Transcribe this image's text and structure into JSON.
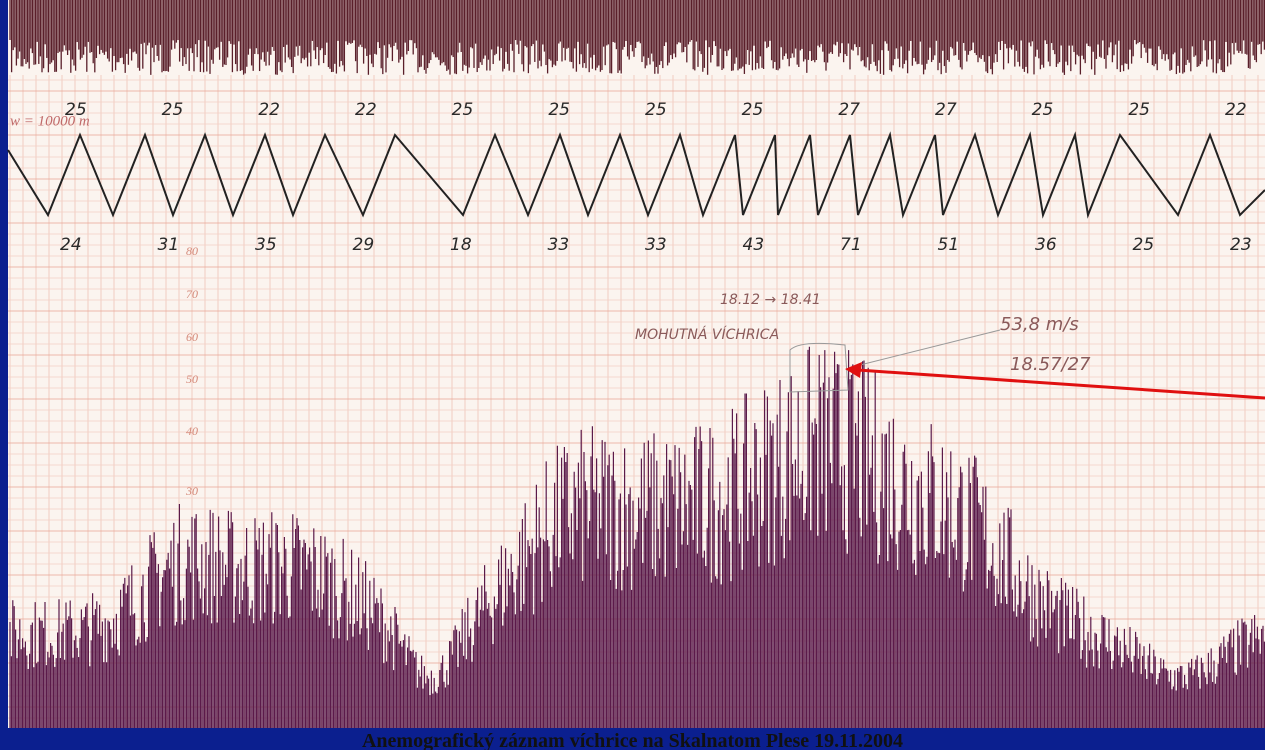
{
  "caption": "Anemografický záznam víchrice na Skalnatom Plese 19.11.2004",
  "record": {
    "scale_note": "w = 10000 m",
    "upper_numbers": [
      "25",
      "25",
      "22",
      "22",
      "25",
      "25",
      "25",
      "25",
      "27",
      "27",
      "25",
      "25",
      "22"
    ],
    "lower_numbers": [
      "24",
      "31",
      "35",
      "29",
      "18",
      "33",
      "33",
      "43",
      "71",
      "51",
      "36",
      "25",
      "23"
    ],
    "speed_scale": [
      "80",
      "70",
      "60",
      "50",
      "40",
      "30"
    ],
    "annotations": {
      "time_span": "18.12 → 18.41",
      "event": "MOHUTNÁ VÍCHRICA",
      "peak_speed": "53,8 m/s",
      "peak_time": "18.57/27"
    }
  }
}
